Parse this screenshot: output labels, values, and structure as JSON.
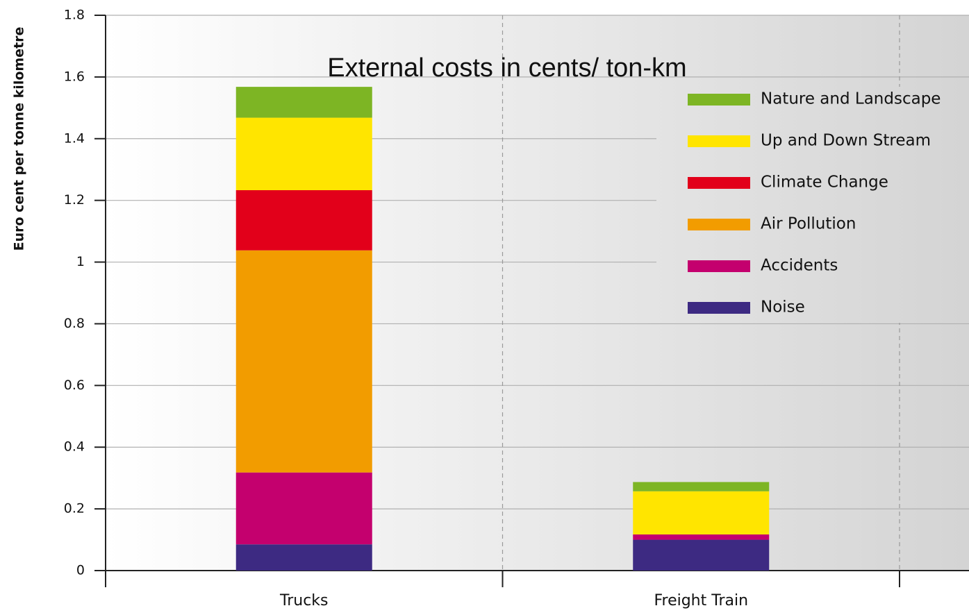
{
  "chart_data": {
    "type": "stacked_bar",
    "title": "External costs in cents/ ton-km",
    "y_label": "Euro cent per tonne kilometre",
    "categories": [
      "Trucks",
      "Freight Train"
    ],
    "series": [
      {
        "name": "Noise",
        "color": "#3d2a82",
        "values": [
          0.085,
          0.1
        ]
      },
      {
        "name": "Accidents",
        "color": "#c4006e",
        "values": [
          0.233,
          0.017
        ]
      },
      {
        "name": "Air Pollution",
        "color": "#f29c00",
        "values": [
          0.72,
          0
        ]
      },
      {
        "name": "Climate Change",
        "color": "#e2001a",
        "values": [
          0.195,
          0
        ]
      },
      {
        "name": "Up and Down Stream",
        "color": "#ffe500",
        "values": [
          0.235,
          0.14
        ]
      },
      {
        "name": "Nature and Landscape",
        "color": "#7db524",
        "values": [
          0.1,
          0.03
        ]
      }
    ],
    "ylim": [
      0,
      1.8
    ],
    "yticks": [
      0,
      0.2,
      0.4,
      0.6,
      0.8,
      1,
      1.2,
      1.4,
      1.6,
      1.8
    ],
    "grid": true
  }
}
